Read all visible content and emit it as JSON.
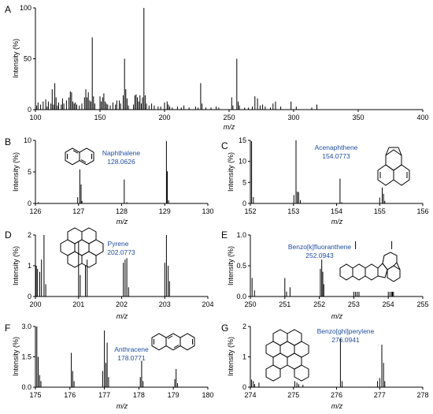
{
  "chart_data": [
    {
      "type": "bar",
      "panel": "A",
      "xlabel": "m/z",
      "ylabel": "Intensity (%)",
      "xlim": [
        100,
        400
      ],
      "ylim": [
        0,
        100
      ],
      "xticks": [
        100,
        150,
        200,
        250,
        300,
        350,
        400
      ],
      "yticks": [
        0,
        50,
        100
      ],
      "peaks": [
        {
          "x": 101,
          "y": 4
        },
        {
          "x": 102,
          "y": 7
        },
        {
          "x": 104,
          "y": 5
        },
        {
          "x": 106,
          "y": 8
        },
        {
          "x": 108,
          "y": 10
        },
        {
          "x": 109,
          "y": 3
        },
        {
          "x": 110,
          "y": 8
        },
        {
          "x": 112,
          "y": 6
        },
        {
          "x": 113,
          "y": 20
        },
        {
          "x": 114,
          "y": 5
        },
        {
          "x": 115,
          "y": 26
        },
        {
          "x": 116,
          "y": 12
        },
        {
          "x": 117,
          "y": 4
        },
        {
          "x": 118,
          "y": 7
        },
        {
          "x": 120,
          "y": 5
        },
        {
          "x": 121,
          "y": 11
        },
        {
          "x": 122,
          "y": 6
        },
        {
          "x": 124,
          "y": 9
        },
        {
          "x": 126,
          "y": 12
        },
        {
          "x": 127,
          "y": 18
        },
        {
          "x": 128,
          "y": 17
        },
        {
          "x": 129,
          "y": 8
        },
        {
          "x": 130,
          "y": 6
        },
        {
          "x": 131,
          "y": 7
        },
        {
          "x": 132,
          "y": 5
        },
        {
          "x": 134,
          "y": 4
        },
        {
          "x": 136,
          "y": 6
        },
        {
          "x": 138,
          "y": 12
        },
        {
          "x": 139,
          "y": 20
        },
        {
          "x": 140,
          "y": 12
        },
        {
          "x": 141,
          "y": 17
        },
        {
          "x": 142,
          "y": 9
        },
        {
          "x": 143,
          "y": 8
        },
        {
          "x": 144,
          "y": 71
        },
        {
          "x": 145,
          "y": 13
        },
        {
          "x": 146,
          "y": 6
        },
        {
          "x": 150,
          "y": 13
        },
        {
          "x": 151,
          "y": 8
        },
        {
          "x": 152,
          "y": 12
        },
        {
          "x": 153,
          "y": 16
        },
        {
          "x": 154,
          "y": 8
        },
        {
          "x": 155,
          "y": 6
        },
        {
          "x": 156,
          "y": 5
        },
        {
          "x": 158,
          "y": 4
        },
        {
          "x": 160,
          "y": 7
        },
        {
          "x": 162,
          "y": 5
        },
        {
          "x": 163,
          "y": 9
        },
        {
          "x": 165,
          "y": 9
        },
        {
          "x": 166,
          "y": 6
        },
        {
          "x": 168,
          "y": 14
        },
        {
          "x": 169,
          "y": 50
        },
        {
          "x": 170,
          "y": 20
        },
        {
          "x": 171,
          "y": 11
        },
        {
          "x": 172,
          "y": 4
        },
        {
          "x": 176,
          "y": 5
        },
        {
          "x": 177,
          "y": 14
        },
        {
          "x": 178,
          "y": 15
        },
        {
          "x": 179,
          "y": 12
        },
        {
          "x": 180,
          "y": 8
        },
        {
          "x": 181,
          "y": 14
        },
        {
          "x": 182,
          "y": 6
        },
        {
          "x": 183,
          "y": 12
        },
        {
          "x": 184,
          "y": 100
        },
        {
          "x": 185,
          "y": 14
        },
        {
          "x": 186,
          "y": 6
        },
        {
          "x": 188,
          "y": 4
        },
        {
          "x": 190,
          "y": 6
        },
        {
          "x": 192,
          "y": 4
        },
        {
          "x": 195,
          "y": 3
        },
        {
          "x": 197,
          "y": 3
        },
        {
          "x": 200,
          "y": 7
        },
        {
          "x": 202,
          "y": 8
        },
        {
          "x": 203,
          "y": 5
        },
        {
          "x": 204,
          "y": 3
        },
        {
          "x": 206,
          "y": 2
        },
        {
          "x": 210,
          "y": 3
        },
        {
          "x": 213,
          "y": 2
        },
        {
          "x": 215,
          "y": 4
        },
        {
          "x": 219,
          "y": 2
        },
        {
          "x": 224,
          "y": 3
        },
        {
          "x": 226,
          "y": 2
        },
        {
          "x": 228,
          "y": 26
        },
        {
          "x": 229,
          "y": 6
        },
        {
          "x": 232,
          "y": 2
        },
        {
          "x": 236,
          "y": 2
        },
        {
          "x": 240,
          "y": 3
        },
        {
          "x": 242,
          "y": 2
        },
        {
          "x": 252,
          "y": 12
        },
        {
          "x": 253,
          "y": 4
        },
        {
          "x": 256,
          "y": 50
        },
        {
          "x": 257,
          "y": 8
        },
        {
          "x": 258,
          "y": 4
        },
        {
          "x": 262,
          "y": 2
        },
        {
          "x": 265,
          "y": 2
        },
        {
          "x": 268,
          "y": 3
        },
        {
          "x": 270,
          "y": 13
        },
        {
          "x": 272,
          "y": 11
        },
        {
          "x": 274,
          "y": 4
        },
        {
          "x": 276,
          "y": 5
        },
        {
          "x": 278,
          "y": 3
        },
        {
          "x": 282,
          "y": 2
        },
        {
          "x": 284,
          "y": 6
        },
        {
          "x": 286,
          "y": 8
        },
        {
          "x": 290,
          "y": 3
        },
        {
          "x": 298,
          "y": 8
        },
        {
          "x": 302,
          "y": 3
        },
        {
          "x": 314,
          "y": 2
        },
        {
          "x": 318,
          "y": 5
        }
      ]
    },
    {
      "type": "bar",
      "panel": "B",
      "xlabel": "m/z",
      "ylabel": "Intensity (%)",
      "xlim": [
        126,
        130
      ],
      "ylim": [
        0,
        10
      ],
      "xticks": [
        126,
        127,
        128,
        129,
        130
      ],
      "yticks": [
        0,
        5,
        10
      ],
      "annotation": {
        "name": "Naphthalene",
        "mass": "128.0626",
        "at": 128.06
      },
      "peaks": [
        {
          "x": 126.07,
          "y": 0.2
        },
        {
          "x": 126.98,
          "y": 1.0
        },
        {
          "x": 127.03,
          "y": 5.4
        },
        {
          "x": 127.06,
          "y": 3.0
        },
        {
          "x": 127.08,
          "y": 0.4
        },
        {
          "x": 128.06,
          "y": 3.8
        },
        {
          "x": 128.12,
          "y": 0.2
        },
        {
          "x": 129.04,
          "y": 9.9
        },
        {
          "x": 129.06,
          "y": 5.1
        },
        {
          "x": 129.09,
          "y": 0.5
        }
      ]
    },
    {
      "type": "bar",
      "panel": "C",
      "xlabel": "m/z",
      "ylabel": "Intensity (%)",
      "xlim": [
        152,
        156
      ],
      "ylim": [
        0,
        15
      ],
      "xticks": [
        152,
        153,
        154,
        155,
        156
      ],
      "yticks": [
        0,
        5,
        10,
        15
      ],
      "annotation": {
        "name": "Acenaphthene",
        "mass": "154.0773",
        "at": 154.08
      },
      "peaks": [
        {
          "x": 152.03,
          "y": 14.8
        },
        {
          "x": 152.07,
          "y": 1.5
        },
        {
          "x": 153.01,
          "y": 2.0
        },
        {
          "x": 153.06,
          "y": 15.0
        },
        {
          "x": 153.09,
          "y": 2.8
        },
        {
          "x": 153.12,
          "y": 2.7
        },
        {
          "x": 153.16,
          "y": 0.8
        },
        {
          "x": 154.08,
          "y": 5.9
        },
        {
          "x": 154.12,
          "y": 0.3
        },
        {
          "x": 155.0,
          "y": 1.4
        },
        {
          "x": 155.06,
          "y": 3.8
        },
        {
          "x": 155.09,
          "y": 2.3
        },
        {
          "x": 155.12,
          "y": 0.6
        }
      ]
    },
    {
      "type": "bar",
      "panel": "D",
      "xlabel": "m/z",
      "ylabel": "Intensity (%)",
      "xlim": [
        200,
        204
      ],
      "ylim": [
        0,
        2
      ],
      "xticks": [
        200,
        201,
        202,
        203,
        204
      ],
      "yticks": [
        0,
        1,
        2
      ],
      "annotation": {
        "name": "Pyrene",
        "mass": "202.0773",
        "at": 202.08
      },
      "peaks": [
        {
          "x": 200.02,
          "y": 1.0
        },
        {
          "x": 200.05,
          "y": 0.9
        },
        {
          "x": 200.1,
          "y": 0.8
        },
        {
          "x": 200.14,
          "y": 1.2
        },
        {
          "x": 200.2,
          "y": 2.0
        },
        {
          "x": 200.24,
          "y": 0.4
        },
        {
          "x": 201.0,
          "y": 1.8
        },
        {
          "x": 201.04,
          "y": 0.7
        },
        {
          "x": 201.16,
          "y": 1.0
        },
        {
          "x": 201.2,
          "y": 1.2
        },
        {
          "x": 202.04,
          "y": 1.1
        },
        {
          "x": 202.08,
          "y": 1.2
        },
        {
          "x": 202.12,
          "y": 1.25
        },
        {
          "x": 202.16,
          "y": 0.3
        },
        {
          "x": 203.0,
          "y": 1.1
        },
        {
          "x": 203.04,
          "y": 2.0
        },
        {
          "x": 203.08,
          "y": 1.0
        },
        {
          "x": 203.11,
          "y": 0.5
        }
      ]
    },
    {
      "type": "bar",
      "panel": "E",
      "xlabel": "m/z",
      "ylabel": "Intensity (%)",
      "xlim": [
        250,
        255
      ],
      "ylim": [
        0,
        1.0
      ],
      "xticks": [
        250,
        251,
        252,
        253,
        254,
        255
      ],
      "yticks": [
        0.0,
        0.5,
        1.0
      ],
      "annotation": {
        "name": "Benzo[k]fluoranthene",
        "mass": "252.0943",
        "at": 252.09
      },
      "peaks": [
        {
          "x": 250.05,
          "y": 0.3
        },
        {
          "x": 250.12,
          "y": 0.1
        },
        {
          "x": 251.0,
          "y": 0.3
        },
        {
          "x": 251.05,
          "y": 0.08
        },
        {
          "x": 251.15,
          "y": 0.15
        },
        {
          "x": 252.03,
          "y": 0.45
        },
        {
          "x": 252.07,
          "y": 0.6
        },
        {
          "x": 252.1,
          "y": 0.4
        },
        {
          "x": 252.13,
          "y": 0.2
        },
        {
          "x": 253.0,
          "y": 0.2
        },
        {
          "x": 253.05,
          "y": 0.9
        },
        {
          "x": 253.1,
          "y": 0.2
        },
        {
          "x": 253.15,
          "y": 0.15
        },
        {
          "x": 254.0,
          "y": 0.1
        },
        {
          "x": 254.05,
          "y": 0.15
        },
        {
          "x": 254.1,
          "y": 0.9
        },
        {
          "x": 254.12,
          "y": 0.25
        },
        {
          "x": 254.15,
          "y": 0.1
        }
      ]
    },
    {
      "type": "bar",
      "panel": "F",
      "xlabel": "m/z",
      "ylabel": "Intensity (%)",
      "xlim": [
        175,
        180
      ],
      "ylim": [
        0,
        3.0
      ],
      "xticks": [
        175,
        176,
        177,
        178,
        179,
        180
      ],
      "yticks": [
        0.0,
        1.5,
        3.0
      ],
      "annotation": {
        "name": "Anthracene",
        "mass": "178.0771",
        "at": 178.08
      },
      "peaks": [
        {
          "x": 175.0,
          "y": 2.7
        },
        {
          "x": 175.04,
          "y": 3.0
        },
        {
          "x": 175.08,
          "y": 1.5
        },
        {
          "x": 175.12,
          "y": 0.6
        },
        {
          "x": 175.16,
          "y": 0.3
        },
        {
          "x": 176.04,
          "y": 1.7
        },
        {
          "x": 176.08,
          "y": 0.8
        },
        {
          "x": 176.12,
          "y": 0.3
        },
        {
          "x": 176.95,
          "y": 0.8
        },
        {
          "x": 177.0,
          "y": 2.8
        },
        {
          "x": 177.04,
          "y": 1.2
        },
        {
          "x": 177.08,
          "y": 2.2
        },
        {
          "x": 177.12,
          "y": 0.5
        },
        {
          "x": 178.04,
          "y": 0.5
        },
        {
          "x": 178.08,
          "y": 1.3
        },
        {
          "x": 178.12,
          "y": 0.3
        },
        {
          "x": 179.04,
          "y": 0.4
        },
        {
          "x": 179.08,
          "y": 0.9
        },
        {
          "x": 179.12,
          "y": 0.2
        }
      ]
    },
    {
      "type": "bar",
      "panel": "G",
      "xlabel": "m/z",
      "ylabel": "Intensity (%)",
      "xlim": [
        274,
        278
      ],
      "ylim": [
        0,
        2
      ],
      "xticks": [
        274,
        275,
        276,
        277,
        278
      ],
      "yticks": [
        0,
        1,
        2
      ],
      "annotation": {
        "name": "Benzo[ghi]perylene",
        "mass": "276.0941",
        "at": 276.09
      },
      "peaks": [
        {
          "x": 274.03,
          "y": 0.25
        },
        {
          "x": 274.07,
          "y": 0.2
        },
        {
          "x": 274.1,
          "y": 0.1
        },
        {
          "x": 274.2,
          "y": 0.15
        },
        {
          "x": 275.03,
          "y": 0.2
        },
        {
          "x": 275.08,
          "y": 0.15
        },
        {
          "x": 275.12,
          "y": 0.1
        },
        {
          "x": 275.22,
          "y": 0.08
        },
        {
          "x": 276.09,
          "y": 1.6
        },
        {
          "x": 276.13,
          "y": 0.2
        },
        {
          "x": 276.95,
          "y": 0.2
        },
        {
          "x": 277.0,
          "y": 0.3
        },
        {
          "x": 277.05,
          "y": 1.4
        },
        {
          "x": 277.09,
          "y": 0.8
        },
        {
          "x": 277.12,
          "y": 0.2
        }
      ]
    }
  ]
}
